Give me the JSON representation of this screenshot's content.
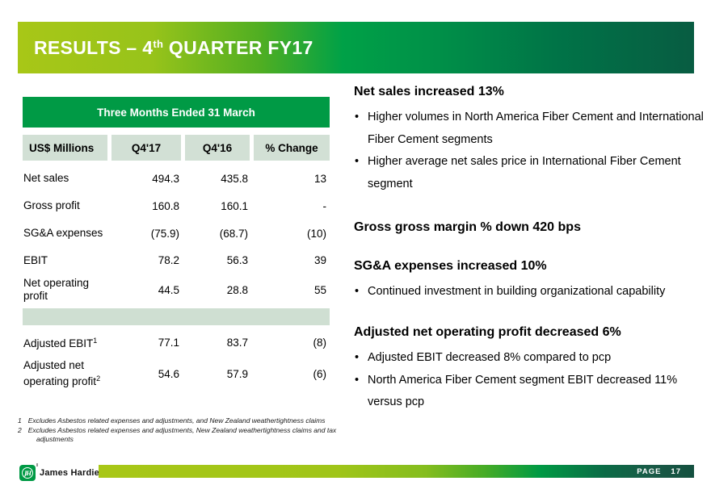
{
  "title": {
    "prefix": "RESULTS – 4",
    "sup": "th",
    "suffix": " QUARTER FY17"
  },
  "table": {
    "caption": "Three Months Ended 31 March",
    "columns": [
      "US$ Millions",
      "Q4'17",
      "Q4'16",
      "% Change"
    ],
    "rows": [
      {
        "label": "Net sales",
        "sup": "",
        "q417": "494.3",
        "q416": "435.8",
        "change": "13"
      },
      {
        "label": "Gross profit",
        "sup": "",
        "q417": "160.8",
        "q416": "160.1",
        "change": "-"
      },
      {
        "label": "SG&A expenses",
        "sup": "",
        "q417": "(75.9)",
        "q416": "(68.7)",
        "change": "(10)"
      },
      {
        "label": "EBIT",
        "sup": "",
        "q417": "78.2",
        "q416": "56.3",
        "change": "39"
      },
      {
        "label": "Net operating profit",
        "sup": "",
        "q417": "44.5",
        "q416": "28.8",
        "change": "55"
      },
      {
        "label": "Adjusted EBIT",
        "sup": "1",
        "q417": "77.1",
        "q416": "83.7",
        "change": "(8)"
      },
      {
        "label": "Adjusted net operating profit",
        "sup": "2",
        "q417": "54.6",
        "q416": "57.9",
        "change": "(6)"
      }
    ]
  },
  "commentary": {
    "sections": [
      {
        "heading": "Net sales increased 13%",
        "bullets": [
          "Higher volumes in North America Fiber Cement and International Fiber Cement segments",
          "Higher average net sales price in International Fiber Cement segment"
        ]
      },
      {
        "heading": "Gross gross margin % down 420 bps",
        "bullets": []
      },
      {
        "heading": "SG&A expenses increased 10%",
        "bullets": [
          "Continued investment in building organizational capability"
        ]
      },
      {
        "heading": "Adjusted net operating profit decreased 6%",
        "bullets": [
          "Adjusted EBIT decreased 8% compared to pcp",
          "North America Fiber Cement segment EBIT decreased 11% versus pcp"
        ]
      }
    ]
  },
  "footnotes": [
    {
      "num": "1",
      "text": "Excludes Asbestos related expenses and adjustments, and New Zealand weathertightness claims"
    },
    {
      "num": "2",
      "text": "Excludes Asbestos related expenses and adjustments, New Zealand weathertightness claims and tax adjustments"
    }
  ],
  "footer": {
    "brand": "James Hardie",
    "logo_monogram": "JH",
    "page_label": "PAGE",
    "page_number": "17"
  },
  "colors": {
    "brand_green": "#009a45",
    "light_row_green": "#d2e0d5",
    "gradient_start": "#a8c717",
    "gradient_end": "#085c42"
  }
}
